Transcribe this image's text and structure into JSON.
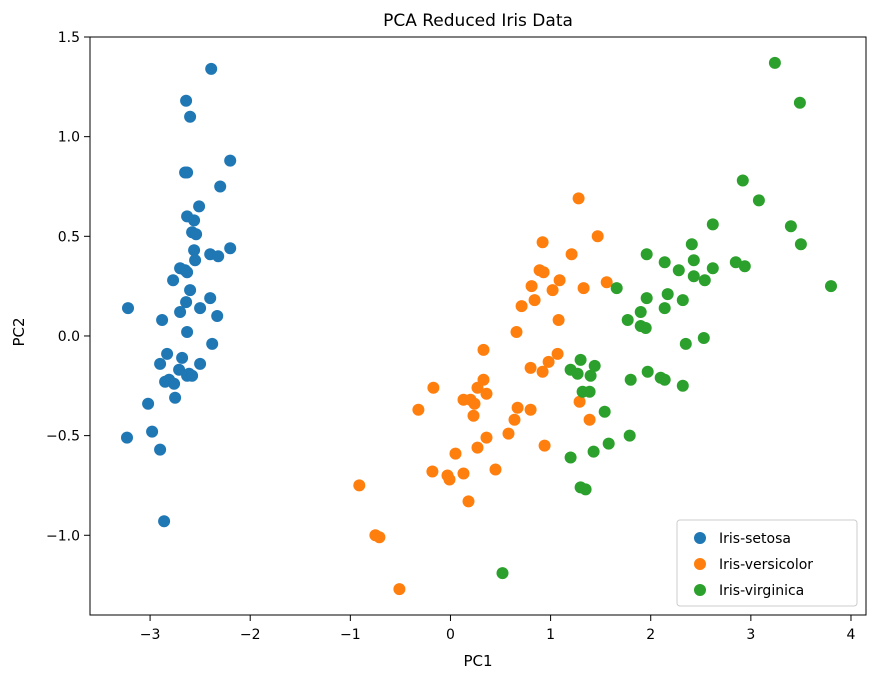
{
  "chart_data": {
    "type": "scatter",
    "title": "PCA Reduced Iris Data",
    "xlabel": "PC1",
    "ylabel": "PC2",
    "xlim": [
      -3.6,
      4.15
    ],
    "ylim": [
      -1.4,
      1.5
    ],
    "xticks": [
      -3,
      -2,
      -1,
      0,
      1,
      2,
      3,
      4
    ],
    "yticks": [
      -1.0,
      -0.5,
      0.0,
      0.5,
      1.0,
      1.5
    ],
    "xtick_labels": [
      "−3",
      "−2",
      "−1",
      "0",
      "1",
      "2",
      "3",
      "4"
    ],
    "ytick_labels": [
      "−1.0",
      "−0.5",
      "0.0",
      "0.5",
      "1.0",
      "1.5"
    ],
    "grid": false,
    "legend_position": "lower-right",
    "series": [
      {
        "name": "Iris-setosa",
        "color": "#1f77b4",
        "points": [
          [
            -2.39,
            1.34
          ],
          [
            -2.64,
            1.18
          ],
          [
            -2.6,
            1.1
          ],
          [
            -2.65,
            0.82
          ],
          [
            -2.63,
            0.82
          ],
          [
            -2.2,
            0.88
          ],
          [
            -2.3,
            0.75
          ],
          [
            -2.51,
            0.65
          ],
          [
            -2.63,
            0.6
          ],
          [
            -2.56,
            0.58
          ],
          [
            -2.58,
            0.52
          ],
          [
            -2.54,
            0.51
          ],
          [
            -2.2,
            0.44
          ],
          [
            -2.4,
            0.41
          ],
          [
            -2.56,
            0.43
          ],
          [
            -2.32,
            0.4
          ],
          [
            -2.55,
            0.38
          ],
          [
            -2.7,
            0.34
          ],
          [
            -2.65,
            0.33
          ],
          [
            -2.63,
            0.32
          ],
          [
            -2.77,
            0.28
          ],
          [
            -2.6,
            0.23
          ],
          [
            -2.4,
            0.19
          ],
          [
            -2.64,
            0.17
          ],
          [
            -2.5,
            0.14
          ],
          [
            -2.7,
            0.12
          ],
          [
            -2.33,
            0.1
          ],
          [
            -3.22,
            0.14
          ],
          [
            -2.88,
            0.08
          ],
          [
            -2.63,
            0.02
          ],
          [
            -2.38,
            -0.04
          ],
          [
            -2.83,
            -0.09
          ],
          [
            -2.68,
            -0.11
          ],
          [
            -2.9,
            -0.14
          ],
          [
            -2.5,
            -0.14
          ],
          [
            -2.71,
            -0.17
          ],
          [
            -2.61,
            -0.19
          ],
          [
            -2.63,
            -0.2
          ],
          [
            -2.58,
            -0.2
          ],
          [
            -2.81,
            -0.22
          ],
          [
            -2.85,
            -0.23
          ],
          [
            -2.76,
            -0.24
          ],
          [
            -2.75,
            -0.31
          ],
          [
            -3.02,
            -0.34
          ],
          [
            -2.98,
            -0.48
          ],
          [
            -3.23,
            -0.51
          ],
          [
            -2.9,
            -0.57
          ],
          [
            -2.86,
            -0.93
          ]
        ]
      },
      {
        "name": "Iris-versicolor",
        "color": "#ff7f0e",
        "points": [
          [
            1.28,
            0.69
          ],
          [
            1.47,
            0.5
          ],
          [
            0.92,
            0.47
          ],
          [
            1.21,
            0.41
          ],
          [
            0.89,
            0.33
          ],
          [
            0.93,
            0.32
          ],
          [
            1.09,
            0.28
          ],
          [
            1.56,
            0.27
          ],
          [
            0.81,
            0.25
          ],
          [
            1.02,
            0.23
          ],
          [
            1.33,
            0.24
          ],
          [
            0.71,
            0.15
          ],
          [
            0.84,
            0.18
          ],
          [
            1.08,
            0.08
          ],
          [
            0.66,
            0.02
          ],
          [
            0.33,
            -0.07
          ],
          [
            1.07,
            -0.09
          ],
          [
            0.98,
            -0.13
          ],
          [
            0.8,
            -0.16
          ],
          [
            0.92,
            -0.18
          ],
          [
            -0.17,
            -0.26
          ],
          [
            0.33,
            -0.22
          ],
          [
            0.36,
            -0.29
          ],
          [
            0.27,
            -0.26
          ],
          [
            0.13,
            -0.32
          ],
          [
            0.2,
            -0.32
          ],
          [
            0.24,
            -0.34
          ],
          [
            -0.32,
            -0.37
          ],
          [
            0.67,
            -0.36
          ],
          [
            0.8,
            -0.37
          ],
          [
            0.23,
            -0.4
          ],
          [
            1.29,
            -0.33
          ],
          [
            0.64,
            -0.42
          ],
          [
            1.39,
            -0.42
          ],
          [
            0.58,
            -0.49
          ],
          [
            0.36,
            -0.51
          ],
          [
            0.94,
            -0.55
          ],
          [
            0.27,
            -0.56
          ],
          [
            0.05,
            -0.59
          ],
          [
            -0.18,
            -0.68
          ],
          [
            0.13,
            -0.69
          ],
          [
            0.45,
            -0.67
          ],
          [
            -0.03,
            -0.7
          ],
          [
            -0.01,
            -0.72
          ],
          [
            0.18,
            -0.83
          ],
          [
            -0.91,
            -0.75
          ],
          [
            -0.75,
            -1.0
          ],
          [
            -0.71,
            -1.01
          ],
          [
            -0.51,
            -1.27
          ]
        ]
      },
      {
        "name": "Iris-virginica",
        "color": "#2ca02c",
        "points": [
          [
            3.24,
            1.37
          ],
          [
            3.49,
            1.17
          ],
          [
            2.92,
            0.78
          ],
          [
            3.08,
            0.68
          ],
          [
            2.62,
            0.56
          ],
          [
            3.4,
            0.55
          ],
          [
            3.5,
            0.46
          ],
          [
            2.41,
            0.46
          ],
          [
            1.96,
            0.41
          ],
          [
            2.14,
            0.37
          ],
          [
            2.43,
            0.38
          ],
          [
            2.85,
            0.37
          ],
          [
            2.94,
            0.35
          ],
          [
            2.28,
            0.33
          ],
          [
            2.62,
            0.34
          ],
          [
            2.43,
            0.3
          ],
          [
            2.54,
            0.28
          ],
          [
            3.8,
            0.25
          ],
          [
            1.66,
            0.24
          ],
          [
            1.96,
            0.19
          ],
          [
            2.17,
            0.21
          ],
          [
            2.32,
            0.18
          ],
          [
            2.14,
            0.14
          ],
          [
            1.9,
            0.12
          ],
          [
            1.77,
            0.08
          ],
          [
            1.9,
            0.05
          ],
          [
            1.95,
            0.04
          ],
          [
            2.53,
            -0.01
          ],
          [
            2.35,
            -0.04
          ],
          [
            1.3,
            -0.12
          ],
          [
            1.44,
            -0.15
          ],
          [
            1.2,
            -0.17
          ],
          [
            1.27,
            -0.19
          ],
          [
            1.4,
            -0.2
          ],
          [
            1.8,
            -0.22
          ],
          [
            1.97,
            -0.18
          ],
          [
            2.1,
            -0.21
          ],
          [
            2.14,
            -0.22
          ],
          [
            2.32,
            -0.25
          ],
          [
            1.39,
            -0.28
          ],
          [
            1.32,
            -0.28
          ],
          [
            1.54,
            -0.38
          ],
          [
            1.79,
            -0.5
          ],
          [
            1.58,
            -0.54
          ],
          [
            1.43,
            -0.58
          ],
          [
            1.2,
            -0.61
          ],
          [
            1.3,
            -0.76
          ],
          [
            1.35,
            -0.77
          ],
          [
            0.52,
            -1.19
          ]
        ]
      }
    ]
  }
}
